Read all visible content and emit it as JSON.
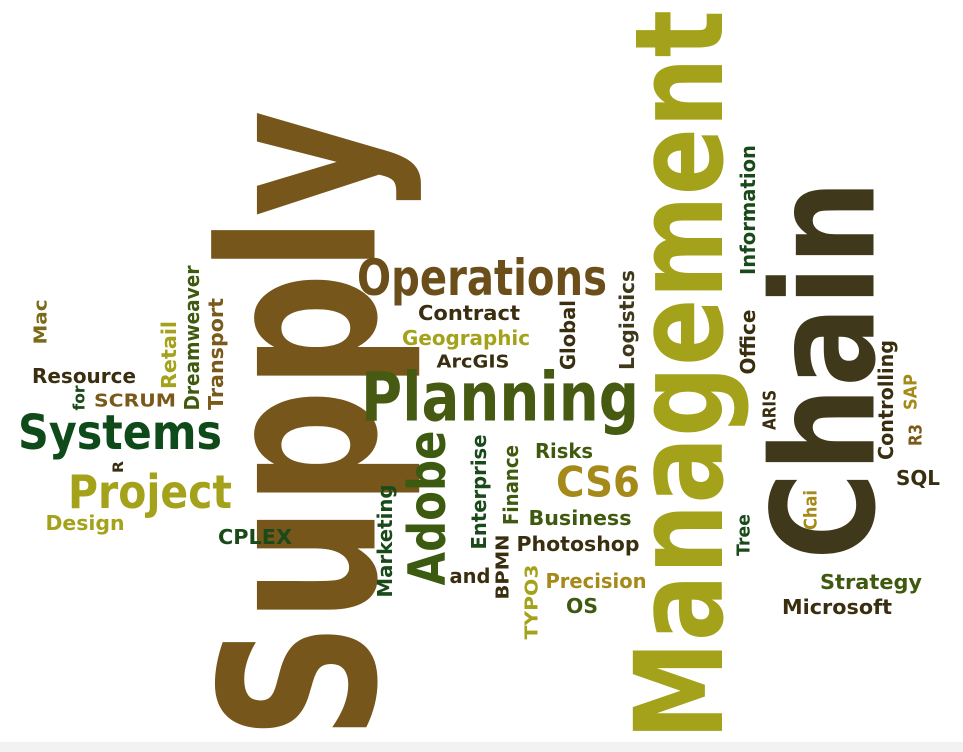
{
  "words": [
    {
      "text": "Supply",
      "color": "#76561b"
    },
    {
      "text": "Management",
      "color": "#a3a21a"
    },
    {
      "text": "Chain",
      "color": "#40381a"
    },
    {
      "text": "Operations",
      "color": "#6b4e1a"
    },
    {
      "text": "Planning",
      "color": "#475a12"
    },
    {
      "text": "Systems",
      "color": "#0f4a1a"
    },
    {
      "text": "Project",
      "color": "#a3a21a"
    },
    {
      "text": "Adobe",
      "color": "#3c5a10"
    },
    {
      "text": "CS6",
      "color": "#a58a1a"
    },
    {
      "text": "Contract",
      "color": "#3a2e10"
    },
    {
      "text": "Geographic",
      "color": "#a3a21a"
    },
    {
      "text": "ArcGIS",
      "color": "#3a2e10"
    },
    {
      "text": "Global",
      "color": "#3a2e10"
    },
    {
      "text": "Logistics",
      "color": "#40381a"
    },
    {
      "text": "Information",
      "color": "#1a4a1a"
    },
    {
      "text": "Office",
      "color": "#3a2e10"
    },
    {
      "text": "ARIS",
      "color": "#3a2e10"
    },
    {
      "text": "Controlling",
      "color": "#3a2e10"
    },
    {
      "text": "SAP",
      "color": "#a58a1a"
    },
    {
      "text": "R3",
      "color": "#7a5a1a"
    },
    {
      "text": "SQL",
      "color": "#3a2e10"
    },
    {
      "text": "Chai",
      "color": "#a58a1a"
    },
    {
      "text": "Tree",
      "color": "#1a4a1a"
    },
    {
      "text": "Strategy",
      "color": "#3f5a0e"
    },
    {
      "text": "Microsoft",
      "color": "#3a2e10"
    },
    {
      "text": "Risks",
      "color": "#3f5a0e"
    },
    {
      "text": "Business",
      "color": "#3f5a0e"
    },
    {
      "text": "Photoshop",
      "color": "#3a2e10"
    },
    {
      "text": "Precision",
      "color": "#a58a1a"
    },
    {
      "text": "OS",
      "color": "#3f5a0e"
    },
    {
      "text": "Finance",
      "color": "#3f5a0e"
    },
    {
      "text": "Enterprise",
      "color": "#1a4a1a"
    },
    {
      "text": "BPMN",
      "color": "#3a2e10"
    },
    {
      "text": "TYPO3",
      "color": "#a3a21a"
    },
    {
      "text": "and",
      "color": "#3a2e10"
    },
    {
      "text": "Marketing",
      "color": "#1a4a1a"
    },
    {
      "text": "CPLEX",
      "color": "#1a4a1a"
    },
    {
      "text": "Design",
      "color": "#a3a21a"
    },
    {
      "text": "R",
      "color": "#3a2e10"
    },
    {
      "text": "SCRUM",
      "color": "#7a5a1a"
    },
    {
      "text": "for",
      "color": "#1a4a1a"
    },
    {
      "text": "Resource",
      "color": "#3a2e10"
    },
    {
      "text": "Mac",
      "color": "#7a6a1a"
    },
    {
      "text": "Retail",
      "color": "#a3a21a"
    },
    {
      "text": "Dreamweaver",
      "color": "#3f5a0e"
    },
    {
      "text": "Transport",
      "color": "#7a5a1a"
    }
  ]
}
